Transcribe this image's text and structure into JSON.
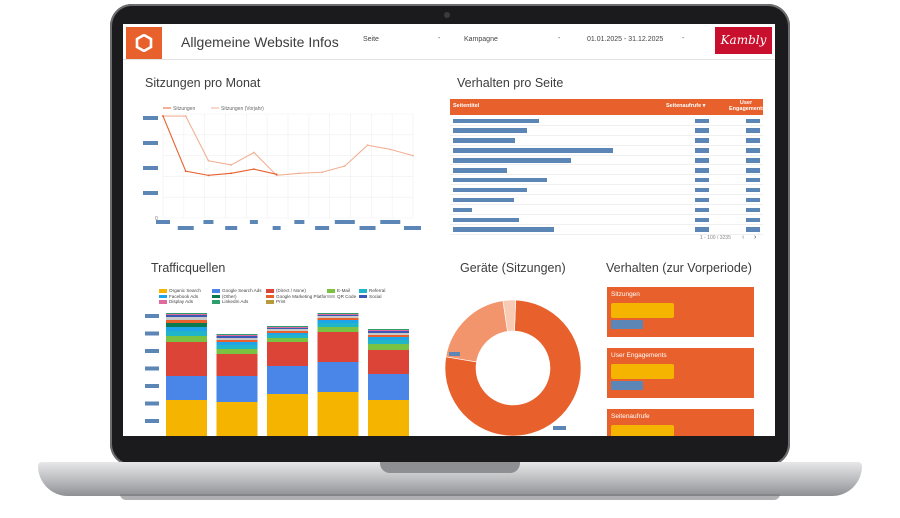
{
  "header": {
    "title": "Allgemeine Website Infos",
    "filter_seite": "Seite",
    "filter_kampagne": "Kampagne",
    "date_range": "01.01.2025 - 31.12.2025",
    "dash": "-",
    "brand": "Kambly"
  },
  "sessions": {
    "title": "Sitzungen pro Monat",
    "legend": [
      "Sitzungen",
      "Sitzungen (Vorjahr)"
    ],
    "colors": [
      "#e8602c",
      "#f2b094"
    ],
    "current": [
      0.98,
      0.45,
      0.41,
      0.43,
      0.47,
      0.42
    ],
    "previous": [
      0.98,
      0.98,
      0.55,
      0.51,
      0.63,
      0.41,
      0.43,
      0.44,
      0.5,
      0.7,
      0.66,
      0.6
    ],
    "y_zero": "0"
  },
  "behavior_table": {
    "title": "Verhalten pro Seite",
    "columns": [
      "Seitentitel",
      "Seitenaufrufe ▾",
      "User Engagements"
    ],
    "bar_fractions": [
      0.54,
      0.46,
      0.39,
      1.0,
      0.74,
      0.34,
      0.59,
      0.46,
      0.38,
      0.12,
      0.41,
      0.63
    ],
    "pager": "1 - 100 / 3235"
  },
  "traffic": {
    "title": "Trafficquellen",
    "legend": [
      {
        "name": "Organic Search",
        "color": "#f4b400"
      },
      {
        "name": "Google Search Ads",
        "color": "#4a86e8"
      },
      {
        "name": "(Direct / None)",
        "color": "#db4437"
      },
      {
        "name": "E-Mail",
        "color": "#7cc242"
      },
      {
        "name": "Referral",
        "color": "#20b5c8"
      },
      {
        "name": "Facebook Ads",
        "color": "#1ea4e9"
      },
      {
        "name": "(Other)",
        "color": "#0b7a4f"
      },
      {
        "name": "Google Marketing Platform",
        "color": "#e8602c"
      },
      {
        "name": "QR Code",
        "color": "#c9c9c9"
      },
      {
        "name": "Social",
        "color": "#3c58b5"
      },
      {
        "name": "Display Ads",
        "color": "#e06c9f"
      },
      {
        "name": "LinkedIn Ads",
        "color": "#2e9e6a"
      },
      {
        "name": "Print",
        "color": "#b59b3a"
      }
    ],
    "stacks": [
      [
        36,
        24,
        34,
        6,
        5,
        4,
        4,
        3,
        3,
        2,
        1,
        1
      ],
      [
        34,
        26,
        22,
        5,
        4,
        3,
        0,
        2,
        2,
        2,
        1,
        1
      ],
      [
        42,
        28,
        24,
        4,
        3,
        2,
        0,
        2,
        2,
        1,
        1,
        1
      ],
      [
        44,
        30,
        30,
        5,
        4,
        3,
        0,
        2,
        2,
        1,
        1,
        1
      ],
      [
        36,
        26,
        24,
        6,
        4,
        3,
        0,
        2,
        2,
        2,
        1,
        1
      ]
    ]
  },
  "devices": {
    "title": "Geräte (Sitzungen)",
    "slices": [
      0.77,
      0.2,
      0.03
    ],
    "colors": [
      "#e8602c",
      "#f2956c",
      "#f8cbb4"
    ]
  },
  "vorperiode": {
    "title": "Verhalten (zur Vorperiode)",
    "cards": [
      "Sitzungen",
      "User Engagements",
      "Seitenaufrufe"
    ]
  }
}
